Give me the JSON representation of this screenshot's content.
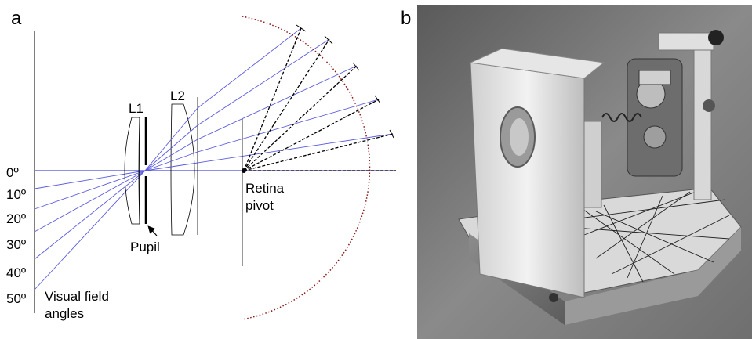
{
  "panel_a": {
    "letter": "a",
    "lens1_label": "L1",
    "lens2_label": "L2",
    "pupil_label": "Pupil",
    "retina_label_line1": "Retina",
    "retina_label_line2": "pivot",
    "axis_label_line1": "Visual field",
    "axis_label_line2": "angles",
    "angles": [
      "0º",
      "10º",
      "20º",
      "30º",
      "40º",
      "50º"
    ],
    "ray_color": "#5a5ae0",
    "chief_ray_color": "#000000",
    "arc_color": "#8b1a1a"
  },
  "panel_b": {
    "letter": "b",
    "photo_description_hidden": ""
  }
}
